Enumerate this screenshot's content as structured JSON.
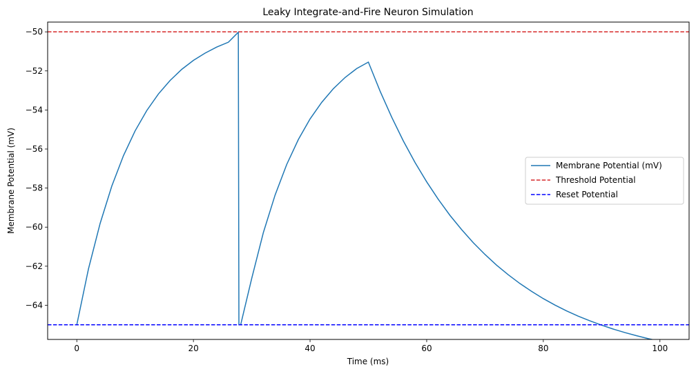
{
  "chart_data": {
    "type": "line",
    "title": "Leaky Integrate-and-Fire Neuron Simulation",
    "xlabel": "Time (ms)",
    "ylabel": "Membrane Potential (mV)",
    "xlim": [
      -5,
      105
    ],
    "ylim": [
      -65.75,
      -49.5
    ],
    "xticks": [
      0,
      20,
      40,
      60,
      80,
      100
    ],
    "yticks": [
      -50,
      -52,
      -54,
      -56,
      -58,
      -60,
      -62,
      -64
    ],
    "xtick_labels": [
      "0",
      "20",
      "40",
      "60",
      "80",
      "100"
    ],
    "ytick_labels": [
      "−50",
      "−52",
      "−54",
      "−56",
      "−58",
      "−60",
      "−62",
      "−64"
    ],
    "grid": false,
    "legend_position": "center-right",
    "series": [
      {
        "name": "Membrane Potential (mV)",
        "color": "#1f77b4",
        "style": "solid",
        "x": [
          0,
          2,
          4,
          6,
          8,
          10,
          12,
          14,
          16,
          18,
          20,
          22,
          24,
          26,
          27.7,
          27.8,
          28.1,
          30,
          32,
          34,
          36,
          38,
          40,
          42,
          44,
          46,
          48,
          50,
          52,
          54,
          56,
          58,
          60,
          62,
          64,
          66,
          68,
          70,
          72,
          74,
          76,
          78,
          80,
          82,
          84,
          86,
          88,
          90,
          92,
          94,
          96,
          98,
          100
        ],
        "y": [
          -65.0,
          -62.14,
          -59.81,
          -57.9,
          -56.34,
          -55.07,
          -54.03,
          -53.18,
          -52.49,
          -51.92,
          -51.46,
          -51.09,
          -50.78,
          -50.53,
          -50.02,
          -65.0,
          -65.0,
          -62.62,
          -60.27,
          -58.36,
          -56.79,
          -55.51,
          -54.46,
          -53.61,
          -52.91,
          -52.34,
          -51.88,
          -51.55,
          -53.03,
          -54.37,
          -55.59,
          -56.69,
          -57.68,
          -58.58,
          -59.4,
          -60.13,
          -60.8,
          -61.4,
          -61.95,
          -62.44,
          -62.89,
          -63.29,
          -63.66,
          -63.99,
          -64.29,
          -64.56,
          -64.8,
          -65.02,
          -65.22,
          -65.4,
          -65.56,
          -65.71,
          -65.84
        ]
      },
      {
        "name": "Threshold Potential",
        "color": "#d62728",
        "style": "dashed",
        "x": [
          -5,
          105
        ],
        "y": [
          -50,
          -50
        ]
      },
      {
        "name": "Reset Potential",
        "color": "#0000ff",
        "style": "dashed",
        "x": [
          -5,
          105
        ],
        "y": [
          -65,
          -65
        ]
      }
    ]
  }
}
